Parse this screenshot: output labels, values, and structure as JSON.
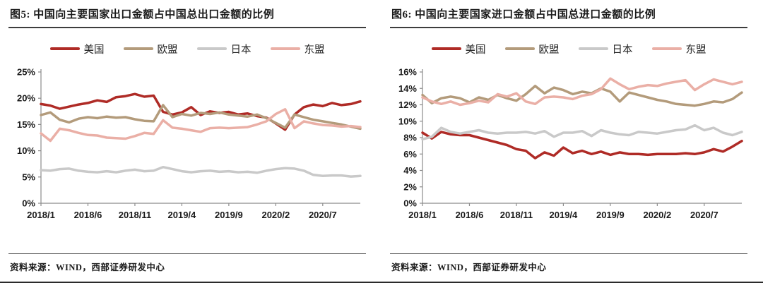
{
  "chart_data": [
    {
      "type": "line",
      "title": "图5: 中国向主要国家出口金额占中国总出口金额的比例",
      "source_note": "资料来源：WIND，西部证券研发中心",
      "x": [
        "2018/1",
        "2018/2",
        "2018/3",
        "2018/4",
        "2018/5",
        "2018/6",
        "2018/7",
        "2018/8",
        "2018/9",
        "2018/10",
        "2018/11",
        "2018/12",
        "2019/1",
        "2019/2",
        "2019/3",
        "2019/4",
        "2019/5",
        "2019/6",
        "2019/7",
        "2019/8",
        "2019/9",
        "2019/10",
        "2019/11",
        "2019/12",
        "2020/1",
        "2020/2",
        "2020/3",
        "2020/4",
        "2020/5",
        "2020/6",
        "2020/7",
        "2020/8",
        "2020/9",
        "2020/10",
        "2020/11"
      ],
      "x_tick_labels": [
        "2018/1",
        "2018/6",
        "2018/11",
        "2019/4",
        "2019/9",
        "2020/2",
        "2020/7"
      ],
      "x_tick_indices": [
        0,
        5,
        10,
        15,
        20,
        25,
        30
      ],
      "ylim": [
        0,
        25
      ],
      "y_tick_step": 5,
      "y_tick_labels": [
        "0%",
        "5%",
        "10%",
        "15%",
        "20%",
        "25%"
      ],
      "grid": false,
      "legend_position": "top",
      "axis_color": "#8c8c8c",
      "series": [
        {
          "name": "美国",
          "key": "us",
          "color": "#AF2B26",
          "values": [
            18.9,
            18.6,
            18.0,
            18.4,
            18.8,
            19.1,
            19.6,
            19.3,
            20.2,
            20.4,
            20.8,
            20.3,
            20.5,
            17.4,
            16.9,
            17.3,
            18.3,
            16.8,
            17.5,
            17.2,
            17.4,
            16.9,
            17.1,
            16.6,
            16.3,
            15.2,
            14.0,
            16.9,
            18.3,
            18.8,
            18.5,
            19.1,
            18.7,
            18.9,
            19.4
          ]
        },
        {
          "name": "欧盟",
          "key": "eu",
          "color": "#B39B7B",
          "values": [
            16.8,
            17.3,
            15.9,
            15.4,
            16.1,
            16.4,
            16.2,
            16.5,
            16.3,
            16.4,
            16.0,
            15.7,
            15.6,
            18.7,
            16.4,
            17.0,
            16.7,
            17.2,
            17.0,
            17.3,
            16.9,
            16.7,
            16.5,
            16.9,
            16.2,
            15.3,
            14.4,
            16.9,
            16.4,
            15.9,
            15.6,
            15.3,
            15.0,
            14.6,
            14.2
          ]
        },
        {
          "name": "日本",
          "key": "japan",
          "color": "#C9C9C9",
          "values": [
            6.3,
            6.2,
            6.5,
            6.6,
            6.2,
            6.0,
            5.9,
            6.1,
            5.9,
            6.2,
            6.4,
            6.1,
            6.2,
            6.9,
            6.5,
            6.1,
            5.9,
            6.1,
            6.2,
            6.0,
            6.1,
            5.9,
            6.0,
            5.8,
            6.2,
            6.5,
            6.7,
            6.6,
            6.2,
            5.4,
            5.2,
            5.3,
            5.3,
            5.1,
            5.2
          ]
        },
        {
          "name": "东盟",
          "key": "asean",
          "color": "#EAAFA6",
          "values": [
            13.3,
            11.9,
            14.2,
            13.9,
            13.4,
            13.0,
            12.9,
            12.5,
            12.4,
            12.3,
            12.8,
            13.4,
            13.2,
            15.8,
            14.4,
            14.2,
            13.9,
            13.6,
            14.3,
            14.4,
            14.3,
            14.4,
            14.5,
            15.0,
            15.6,
            17.0,
            17.9,
            14.3,
            15.6,
            15.2,
            14.9,
            14.8,
            14.6,
            14.7,
            14.5
          ]
        }
      ]
    },
    {
      "type": "line",
      "title": "图6: 中国向主要国家进口金额占中国总进口金额的比例",
      "source_note": "资料来源：WIND，西部证券研发中心",
      "x": [
        "2018/1",
        "2018/2",
        "2018/3",
        "2018/4",
        "2018/5",
        "2018/6",
        "2018/7",
        "2018/8",
        "2018/9",
        "2018/10",
        "2018/11",
        "2018/12",
        "2019/1",
        "2019/2",
        "2019/3",
        "2019/4",
        "2019/5",
        "2019/6",
        "2019/7",
        "2019/8",
        "2019/9",
        "2019/10",
        "2019/11",
        "2019/12",
        "2020/1",
        "2020/2",
        "2020/3",
        "2020/4",
        "2020/5",
        "2020/6",
        "2020/7",
        "2020/8",
        "2020/9",
        "2020/10",
        "2020/11"
      ],
      "x_tick_labels": [
        "2018/1",
        "2018/6",
        "2018/11",
        "2019/4",
        "2019/9",
        "2020/2",
        "2020/7"
      ],
      "x_tick_indices": [
        0,
        5,
        10,
        15,
        20,
        25,
        30
      ],
      "ylim": [
        0,
        16
      ],
      "y_tick_step": 2,
      "y_tick_labels": [
        "0%",
        "2%",
        "4%",
        "6%",
        "8%",
        "10%",
        "12%",
        "14%",
        "16%"
      ],
      "grid": false,
      "legend_position": "top",
      "axis_color": "#8c8c8c",
      "series": [
        {
          "name": "美国",
          "key": "us",
          "color": "#AF2B26",
          "values": [
            8.6,
            7.9,
            8.7,
            8.4,
            8.3,
            8.3,
            8.0,
            7.7,
            7.4,
            7.1,
            6.6,
            6.4,
            5.5,
            6.2,
            5.8,
            6.8,
            6.1,
            6.4,
            6.0,
            6.3,
            5.9,
            6.2,
            6.0,
            6.0,
            5.9,
            6.0,
            6.0,
            6.0,
            6.1,
            6.0,
            6.2,
            6.6,
            6.3,
            6.9,
            7.6
          ]
        },
        {
          "name": "欧盟",
          "key": "eu",
          "color": "#B39B7B",
          "values": [
            13.2,
            12.2,
            12.8,
            13.0,
            12.8,
            12.3,
            12.9,
            12.6,
            13.2,
            12.8,
            12.5,
            13.3,
            14.3,
            13.4,
            14.1,
            13.8,
            13.3,
            13.6,
            13.4,
            14.0,
            13.6,
            12.4,
            13.5,
            13.2,
            12.9,
            12.6,
            12.4,
            12.1,
            12.0,
            11.9,
            12.1,
            12.4,
            12.3,
            12.7,
            13.5
          ]
        },
        {
          "name": "日本",
          "key": "japan",
          "color": "#C9C9C9",
          "values": [
            7.8,
            8.1,
            9.2,
            8.7,
            8.5,
            8.7,
            8.9,
            8.6,
            8.5,
            8.6,
            8.6,
            8.7,
            8.5,
            8.8,
            8.1,
            8.6,
            8.6,
            8.8,
            8.2,
            8.9,
            8.6,
            8.4,
            8.3,
            8.7,
            8.6,
            8.5,
            8.7,
            8.9,
            9.0,
            9.5,
            8.9,
            9.2,
            8.6,
            8.3,
            8.7
          ]
        },
        {
          "name": "东盟",
          "key": "asean",
          "color": "#EAAFA6",
          "values": [
            12.9,
            12.4,
            12.1,
            12.4,
            12.0,
            12.2,
            12.5,
            12.3,
            13.3,
            13.0,
            13.4,
            12.4,
            12.1,
            12.9,
            13.0,
            12.9,
            12.7,
            13.1,
            13.3,
            13.9,
            15.2,
            14.5,
            13.9,
            14.2,
            14.4,
            14.3,
            14.6,
            14.8,
            15.0,
            13.8,
            14.5,
            15.1,
            14.8,
            14.5,
            14.8
          ]
        }
      ]
    }
  ]
}
